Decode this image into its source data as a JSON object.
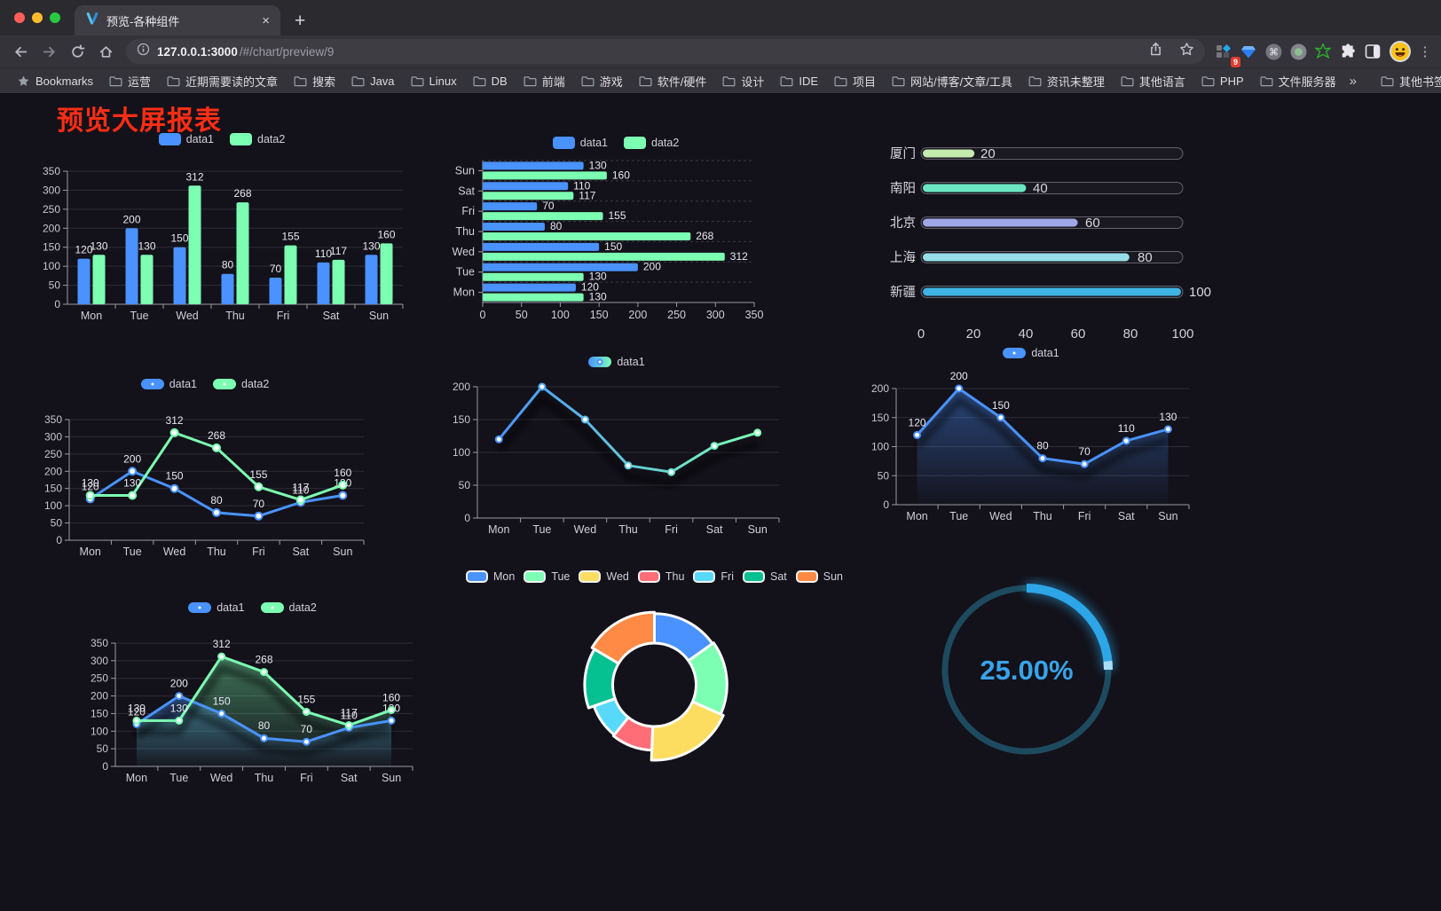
{
  "browser": {
    "traffic_lights": [
      "#ff5f57",
      "#febc2e",
      "#28c840"
    ],
    "tab": {
      "title": "预览-各种组件",
      "close_label": "×"
    },
    "new_tab_label": "+",
    "nav": {
      "url_host": "127.0.0.1:3000",
      "url_path": "/#/chart/preview/9"
    },
    "extensions_badge": "9",
    "cmd_glyph": "⌘",
    "menu_glyph": "⋮",
    "bookmarks_bar": {
      "bookmarks_label": "Bookmarks",
      "folders": [
        "运营",
        "近期需要读的文章",
        "搜索",
        "Java",
        "Linux",
        "DB",
        "前端",
        "游戏",
        "软件/硬件",
        "设计",
        "IDE",
        "项目",
        "网站/博客/文章/工具",
        "资讯未整理",
        "其他语言",
        "PHP",
        "文件服务器"
      ],
      "overflow_label": "»",
      "other_bookmarks_label": "其他书签"
    }
  },
  "page": {
    "title": "预览大屏报表",
    "title_color": "#fe2e16",
    "background": "#131119"
  },
  "chart_data": [
    {
      "id": "bar-vertical",
      "type": "bar",
      "orientation": "vertical",
      "categories": [
        "Mon",
        "Tue",
        "Wed",
        "Thu",
        "Fri",
        "Sat",
        "Sun"
      ],
      "series": [
        {
          "name": "data1",
          "color": "#4992ff",
          "values": [
            120,
            200,
            150,
            80,
            70,
            110,
            130
          ]
        },
        {
          "name": "data2",
          "color": "#7cffb2",
          "values": [
            130,
            130,
            312,
            268,
            155,
            117,
            160
          ]
        }
      ],
      "ylim": [
        0,
        350
      ],
      "ystep": 50,
      "legend_position": "top",
      "grid": true
    },
    {
      "id": "bar-horizontal",
      "type": "bar",
      "orientation": "horizontal",
      "display_order": "Sun-top",
      "categories": [
        "Mon",
        "Tue",
        "Wed",
        "Thu",
        "Fri",
        "Sat",
        "Sun"
      ],
      "series": [
        {
          "name": "data1",
          "color": "#4992ff",
          "values": [
            120,
            200,
            150,
            80,
            70,
            110,
            130
          ]
        },
        {
          "name": "data2",
          "color": "#7cffb2",
          "values": [
            130,
            130,
            312,
            268,
            155,
            117,
            160
          ]
        }
      ],
      "xlim": [
        0,
        350
      ],
      "xstep": 50,
      "legend_position": "top",
      "grid": true
    },
    {
      "id": "progress-bars",
      "type": "bar",
      "orientation": "horizontal-progress",
      "categories": [
        "厦门",
        "南阳",
        "北京",
        "上海",
        "新疆"
      ],
      "values": [
        20,
        40,
        60,
        80,
        100
      ],
      "colors": [
        "#c4ebad",
        "#6be6c1",
        "#a0a7e6",
        "#96dee8",
        "#3fb1e3"
      ],
      "xlim": [
        0,
        100
      ],
      "xticks": [
        0,
        20,
        40,
        60,
        80,
        100
      ]
    },
    {
      "id": "line-two-series",
      "type": "line",
      "labels": true,
      "marker_r": 4,
      "categories": [
        "Mon",
        "Tue",
        "Wed",
        "Thu",
        "Fri",
        "Sat",
        "Sun"
      ],
      "series": [
        {
          "name": "data1",
          "color": "#4992ff",
          "values": [
            120,
            200,
            150,
            80,
            70,
            110,
            130
          ]
        },
        {
          "name": "data2",
          "color": "#7cffb2",
          "values": [
            130,
            130,
            312,
            268,
            155,
            117,
            160
          ]
        }
      ],
      "ylim": [
        0,
        350
      ],
      "ystep": 50,
      "legend_position": "top",
      "grid": true
    },
    {
      "id": "line-gradient",
      "type": "line",
      "labels": false,
      "shadow": true,
      "marker_r": 3.5,
      "categories": [
        "Mon",
        "Tue",
        "Wed",
        "Thu",
        "Fri",
        "Sat",
        "Sun"
      ],
      "series": [
        {
          "name": "data1",
          "gradient": [
            "#4992ff",
            "#7cffb2"
          ],
          "values": [
            120,
            200,
            150,
            80,
            70,
            110,
            130
          ]
        }
      ],
      "ylim": [
        0,
        200
      ],
      "ystep": 50,
      "legend_position": "top",
      "grid": true
    },
    {
      "id": "area-single",
      "type": "area",
      "labels": true,
      "shadow": true,
      "marker_r": 3.5,
      "categories": [
        "Mon",
        "Tue",
        "Wed",
        "Thu",
        "Fri",
        "Sat",
        "Sun"
      ],
      "series": [
        {
          "name": "data1",
          "color": "#4992ff",
          "values": [
            120,
            200,
            150,
            80,
            70,
            110,
            130
          ],
          "area": true
        }
      ],
      "ylim": [
        0,
        200
      ],
      "ystep": 50,
      "legend_position": "top",
      "grid": true
    },
    {
      "id": "area-two-series",
      "type": "area",
      "labels": true,
      "shadow": true,
      "marker_r": 3.5,
      "categories": [
        "Mon",
        "Tue",
        "Wed",
        "Thu",
        "Fri",
        "Sat",
        "Sun"
      ],
      "series": [
        {
          "name": "data1",
          "color": "#4992ff",
          "values": [
            120,
            200,
            150,
            80,
            70,
            110,
            130
          ],
          "area": true
        },
        {
          "name": "data2",
          "color": "#7cffb2",
          "values": [
            130,
            130,
            312,
            268,
            155,
            117,
            160
          ],
          "area": true
        }
      ],
      "ylim": [
        0,
        350
      ],
      "ystep": 50,
      "legend_position": "top",
      "grid": true
    },
    {
      "id": "donut-rose",
      "type": "pie",
      "rose": true,
      "legend_position": "top",
      "categories": [
        "Mon",
        "Tue",
        "Wed",
        "Thu",
        "Fri",
        "Sat",
        "Sun"
      ],
      "values": [
        120,
        130,
        150,
        80,
        70,
        110,
        130
      ],
      "colors": [
        "#4992ff",
        "#7cffb2",
        "#fddd60",
        "#ff6e76",
        "#58d9f9",
        "#05c091",
        "#ff8a45"
      ],
      "border_color": "#ffffff"
    },
    {
      "id": "gauge",
      "type": "gauge",
      "value": 25,
      "label": "25.00%",
      "color": "#2da6e8",
      "tip_color": "#a8dcf7",
      "track_color": "#1d4a5e",
      "text_color": "#38a3e9"
    }
  ]
}
